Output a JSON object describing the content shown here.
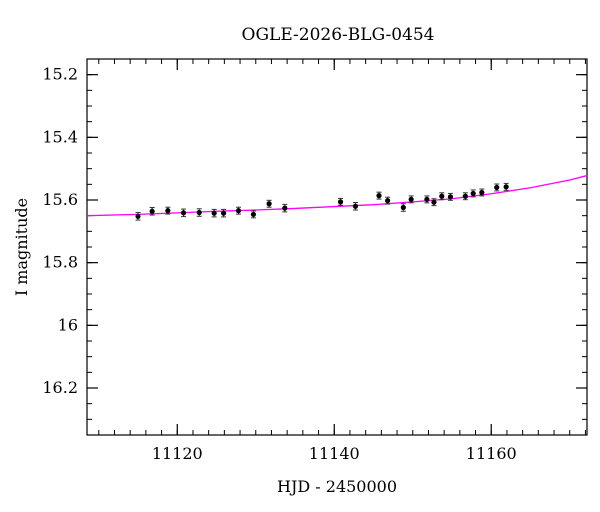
{
  "chart_data": {
    "type": "scatter",
    "title": "OGLE-2026-BLG-0454",
    "xlabel": "HJD - 2450000",
    "ylabel": "I magnitude",
    "xlim": [
      11108.5,
      11172.2
    ],
    "ylim": [
      16.35,
      15.15
    ],
    "y_inverted": true,
    "xticks": [
      11120,
      11140,
      11160
    ],
    "xtick_labels": [
      "11120",
      "11140",
      "11160"
    ],
    "yticks": [
      15.2,
      15.4,
      15.6,
      15.8,
      16.0,
      16.2
    ],
    "ytick_labels": [
      "15.2",
      "15.4",
      "15.6",
      "15.8",
      "16",
      "16.2"
    ],
    "x_minor_step": 2,
    "y_minor_step": 0.05,
    "grid": false,
    "colors": {
      "points": "#000000",
      "errorbars": "#333333",
      "model": "#ff00ff"
    },
    "series": [
      {
        "type": "scatter",
        "x": [
          11115.0,
          11116.8,
          11118.8,
          11120.8,
          11122.8,
          11124.7,
          11125.9,
          11127.8,
          11129.7,
          11131.7,
          11133.7,
          11140.8,
          11142.7,
          11145.7,
          11146.8,
          11148.8,
          11149.8,
          11151.8,
          11152.7,
          11153.7,
          11154.8,
          11156.7,
          11157.7,
          11158.8,
          11160.7,
          11161.9
        ],
        "y": [
          15.652,
          15.636,
          15.634,
          15.641,
          15.64,
          15.642,
          15.642,
          15.634,
          15.646,
          15.612,
          15.626,
          15.606,
          15.62,
          15.586,
          15.602,
          15.624,
          15.598,
          15.598,
          15.607,
          15.588,
          15.59,
          15.588,
          15.579,
          15.576,
          15.56,
          15.558
        ],
        "yerr": [
          0.012,
          0.012,
          0.011,
          0.012,
          0.012,
          0.012,
          0.012,
          0.011,
          0.011,
          0.011,
          0.012,
          0.011,
          0.012,
          0.011,
          0.011,
          0.012,
          0.011,
          0.011,
          0.011,
          0.011,
          0.011,
          0.011,
          0.011,
          0.011,
          0.011,
          0.011
        ]
      },
      {
        "type": "line",
        "x": [
          11108.5,
          11115,
          11120,
          11125,
          11130,
          11135,
          11140,
          11145,
          11150,
          11155,
          11160,
          11165,
          11170,
          11172.2
        ],
        "y": [
          15.65,
          15.646,
          15.641,
          15.636,
          15.632,
          15.627,
          15.621,
          15.615,
          15.606,
          15.596,
          15.58,
          15.561,
          15.536,
          15.522
        ]
      }
    ]
  }
}
